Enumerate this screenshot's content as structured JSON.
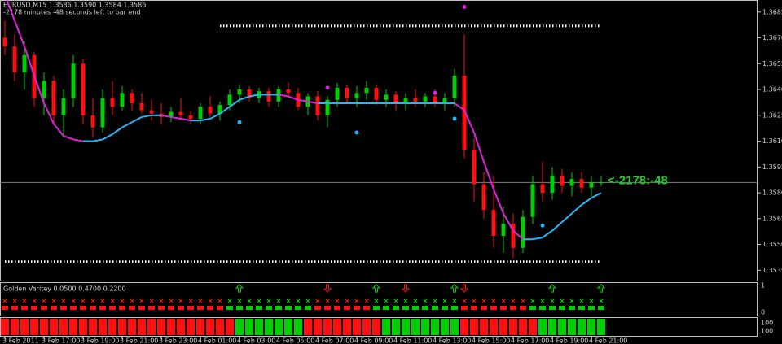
{
  "chart_data": {
    "type": "candlestick",
    "title": "EURUSD,M15  1.3586 1.3590 1.3584 1.3586",
    "subtitle": "-2178 minutes -48 seconds left to bar end",
    "categories": [
      "3 Feb 2011",
      null,
      null,
      null,
      "3 Feb 17:00",
      null,
      null,
      null,
      "3 Feb 19:00",
      null,
      null,
      null,
      "3 Feb 21:00",
      null,
      null,
      null,
      "3 Feb 23:00",
      null,
      null,
      null,
      "4 Feb 01:00",
      null,
      null,
      null,
      "4 Feb 03:00",
      null,
      null,
      null,
      "4 Feb 05:00",
      null,
      null,
      null,
      "4 Feb 07:00",
      null,
      null,
      null,
      "4 Feb 09:00",
      null,
      null,
      null,
      "4 Feb 11:00",
      null,
      null,
      null,
      "4 Feb 13:00",
      null,
      null,
      null,
      "4 Feb 15:00",
      null,
      null,
      null,
      "4 Feb 17:00",
      null,
      null,
      null,
      "4 Feb 19:00",
      null,
      null,
      null,
      "4 Feb 21:00",
      null
    ],
    "open": [
      1.367,
      1.3665,
      1.365,
      1.366,
      1.3635,
      1.3645,
      1.3625,
      1.3635,
      1.3655,
      1.3625,
      1.3618,
      1.3635,
      1.363,
      1.3638,
      1.3632,
      1.3628,
      1.3626,
      1.3624,
      1.3627,
      1.3625,
      1.3623,
      1.363,
      1.3626,
      1.3631,
      1.3637,
      1.364,
      1.3635,
      1.3639,
      1.3633,
      1.364,
      1.3638,
      1.363,
      1.3636,
      1.3625,
      1.3634,
      1.3641,
      1.3635,
      1.3638,
      1.3641,
      1.3634,
      1.3637,
      1.3632,
      1.3635,
      1.3633,
      1.3636,
      1.3632,
      1.3635,
      1.3648,
      1.3605,
      1.3585,
      1.357,
      1.3555,
      1.3562,
      1.3548,
      1.3566,
      1.3585,
      1.358,
      1.359,
      1.3584,
      1.3588,
      1.3583,
      1.3586
    ],
    "high": [
      1.368,
      1.3672,
      1.3668,
      1.3662,
      1.365,
      1.3648,
      1.364,
      1.366,
      1.3658,
      1.3635,
      1.364,
      1.3645,
      1.3642,
      1.364,
      1.3638,
      1.3634,
      1.3632,
      1.363,
      1.3635,
      1.3628,
      1.3632,
      1.3636,
      1.3633,
      1.364,
      1.3643,
      1.3642,
      1.3641,
      1.3641,
      1.3642,
      1.3644,
      1.3641,
      1.3638,
      1.3639,
      1.3636,
      1.3644,
      1.3643,
      1.3642,
      1.3645,
      1.3643,
      1.364,
      1.3639,
      1.3638,
      1.364,
      1.3638,
      1.364,
      1.3638,
      1.3652,
      1.3672,
      1.3612,
      1.3592,
      1.359,
      1.3572,
      1.3568,
      1.357,
      1.359,
      1.3598,
      1.3595,
      1.3594,
      1.3592,
      1.3592,
      1.359,
      1.359
    ],
    "low": [
      1.366,
      1.3645,
      1.364,
      1.363,
      1.3625,
      1.362,
      1.3612,
      1.363,
      1.362,
      1.3612,
      1.3615,
      1.3625,
      1.3628,
      1.3628,
      1.3626,
      1.3622,
      1.362,
      1.3621,
      1.3622,
      1.362,
      1.362,
      1.3624,
      1.3622,
      1.3628,
      1.3632,
      1.3633,
      1.3632,
      1.363,
      1.363,
      1.3635,
      1.3628,
      1.3625,
      1.3622,
      1.3618,
      1.363,
      1.3632,
      1.363,
      1.3634,
      1.3631,
      1.363,
      1.3628,
      1.3628,
      1.363,
      1.363,
      1.363,
      1.3628,
      1.363,
      1.36,
      1.3575,
      1.3565,
      1.3548,
      1.3545,
      1.3542,
      1.3545,
      1.3562,
      1.3575,
      1.3576,
      1.358,
      1.3578,
      1.358,
      1.3578,
      1.3584
    ],
    "close": [
      1.3665,
      1.365,
      1.366,
      1.3635,
      1.3645,
      1.3625,
      1.3635,
      1.3655,
      1.3625,
      1.3618,
      1.3635,
      1.363,
      1.3638,
      1.3632,
      1.3628,
      1.3626,
      1.3624,
      1.3627,
      1.3625,
      1.3623,
      1.363,
      1.3626,
      1.3631,
      1.3637,
      1.364,
      1.3635,
      1.3639,
      1.3633,
      1.364,
      1.3638,
      1.363,
      1.3636,
      1.3625,
      1.3634,
      1.3641,
      1.3635,
      1.3638,
      1.3641,
      1.3634,
      1.3637,
      1.3632,
      1.3635,
      1.3633,
      1.3636,
      1.3632,
      1.3635,
      1.3648,
      1.3605,
      1.3585,
      1.357,
      1.3555,
      1.3562,
      1.3548,
      1.3566,
      1.3585,
      1.358,
      1.359,
      1.3584,
      1.3588,
      1.3583,
      1.3586,
      1.3586
    ],
    "up_color": "#00d000",
    "down_color": "#ff1010",
    "ma": [
      1.3695,
      1.368,
      1.3665,
      1.3648,
      1.3632,
      1.362,
      1.3613,
      1.3611,
      1.361,
      1.361,
      1.3611,
      1.3614,
      1.3618,
      1.3621,
      1.3624,
      1.3625,
      1.3625,
      1.3624,
      1.3623,
      1.3622,
      1.3622,
      1.3623,
      1.3626,
      1.363,
      1.3634,
      1.3636,
      1.3637,
      1.3637,
      1.3637,
      1.3636,
      1.3634,
      1.3633,
      1.3632,
      1.3632,
      1.3632,
      1.3632,
      1.3632,
      1.3632,
      1.3632,
      1.3632,
      1.3632,
      1.3632,
      1.3632,
      1.3632,
      1.3632,
      1.3632,
      1.3632,
      1.3628,
      1.3615,
      1.3598,
      1.3582,
      1.3568,
      1.3558,
      1.3553,
      1.3553,
      1.3554,
      1.3558,
      1.3563,
      1.3568,
      1.3573,
      1.3577,
      1.358
    ],
    "ma_up_color": "#29b6f6",
    "ma_down_color": "#e020e0",
    "dots": [
      {
        "index": 47,
        "price": 1.3688,
        "color": "#e020e0"
      },
      {
        "index": 33,
        "price": 1.3641,
        "color": "#e020e0"
      },
      {
        "index": 44,
        "price": 1.3638,
        "color": "#e020e0"
      },
      {
        "index": 24,
        "price": 1.3621,
        "color": "#29b6f6"
      },
      {
        "index": 36,
        "price": 1.3615,
        "color": "#29b6f6"
      },
      {
        "index": 46,
        "price": 1.3623,
        "color": "#29b6f6"
      },
      {
        "index": 55,
        "price": 1.3561,
        "color": "#29b6f6"
      }
    ],
    "levels": [
      {
        "price": 1.3677,
        "from": 22,
        "to": 61
      },
      {
        "price": 1.354,
        "from": 0,
        "to": 61
      }
    ],
    "current_price": 1.3586,
    "countdown_label": "<-2178:-48",
    "ylim": [
      1.3529,
      1.3692
    ],
    "yticks": [
      1.3685,
      {
        "value": 1.367,
        "label": "1.3670"
      },
      1.3655,
      {
        "value": 1.364,
        "label": "1.3640"
      },
      1.3625,
      {
        "value": 1.361,
        "label": "1.3610"
      },
      1.3595,
      {
        "value": 1.358,
        "label": "1.3580"
      },
      1.3565,
      {
        "value": 1.355,
        "label": "1.3550"
      },
      1.3535
    ],
    "indicator": {
      "title": "Golden Varitey 0.0500 0.4700 0.2200",
      "ylim": [
        0,
        1
      ],
      "yticks": [
        1,
        0
      ],
      "up_arrows": [
        24,
        38,
        46,
        56,
        61
      ],
      "down_arrows": [
        33,
        41,
        47
      ],
      "x_row": [
        -1,
        -1,
        -1,
        -1,
        -1,
        -1,
        -1,
        -1,
        -1,
        -1,
        -1,
        -1,
        -1,
        -1,
        -1,
        -1,
        -1,
        -1,
        -1,
        -1,
        -1,
        -1,
        -1,
        1,
        1,
        1,
        1,
        1,
        1,
        1,
        1,
        1,
        -1,
        -1,
        -1,
        -1,
        -1,
        -1,
        1,
        1,
        1,
        1,
        1,
        1,
        1,
        1,
        1,
        -1,
        -1,
        -1,
        -1,
        -1,
        -1,
        -1,
        1,
        1,
        1,
        1,
        1,
        1,
        1,
        1
      ],
      "square_row": [
        -1,
        -1,
        -1,
        -1,
        -1,
        -1,
        -1,
        -1,
        -1,
        -1,
        -1,
        -1,
        -1,
        -1,
        -1,
        -1,
        -1,
        -1,
        -1,
        -1,
        -1,
        -1,
        -1,
        1,
        1,
        1,
        1,
        1,
        1,
        1,
        1,
        1,
        -1,
        -1,
        -1,
        -1,
        -1,
        -1,
        1,
        1,
        1,
        1,
        1,
        1,
        1,
        1,
        1,
        -1,
        -1,
        -1,
        -1,
        -1,
        -1,
        -1,
        1,
        1,
        1,
        1,
        1,
        1,
        1,
        1
      ],
      "bar_row": [
        -1,
        -1,
        -1,
        -1,
        -1,
        -1,
        -1,
        -1,
        -1,
        -1,
        -1,
        -1,
        -1,
        -1,
        -1,
        -1,
        -1,
        -1,
        -1,
        -1,
        -1,
        -1,
        -1,
        -1,
        1,
        1,
        1,
        1,
        1,
        1,
        1,
        -1,
        -1,
        -1,
        -1,
        -1,
        -1,
        -1,
        -1,
        1,
        1,
        1,
        1,
        1,
        1,
        1,
        1,
        -1,
        -1,
        -1,
        -1,
        -1,
        -1,
        -1,
        -1,
        1,
        1,
        1,
        1,
        1,
        1,
        1
      ],
      "green": "#00d000",
      "red": "#ff1010"
    },
    "bar_panel_labels": [
      "100",
      "100"
    ]
  }
}
